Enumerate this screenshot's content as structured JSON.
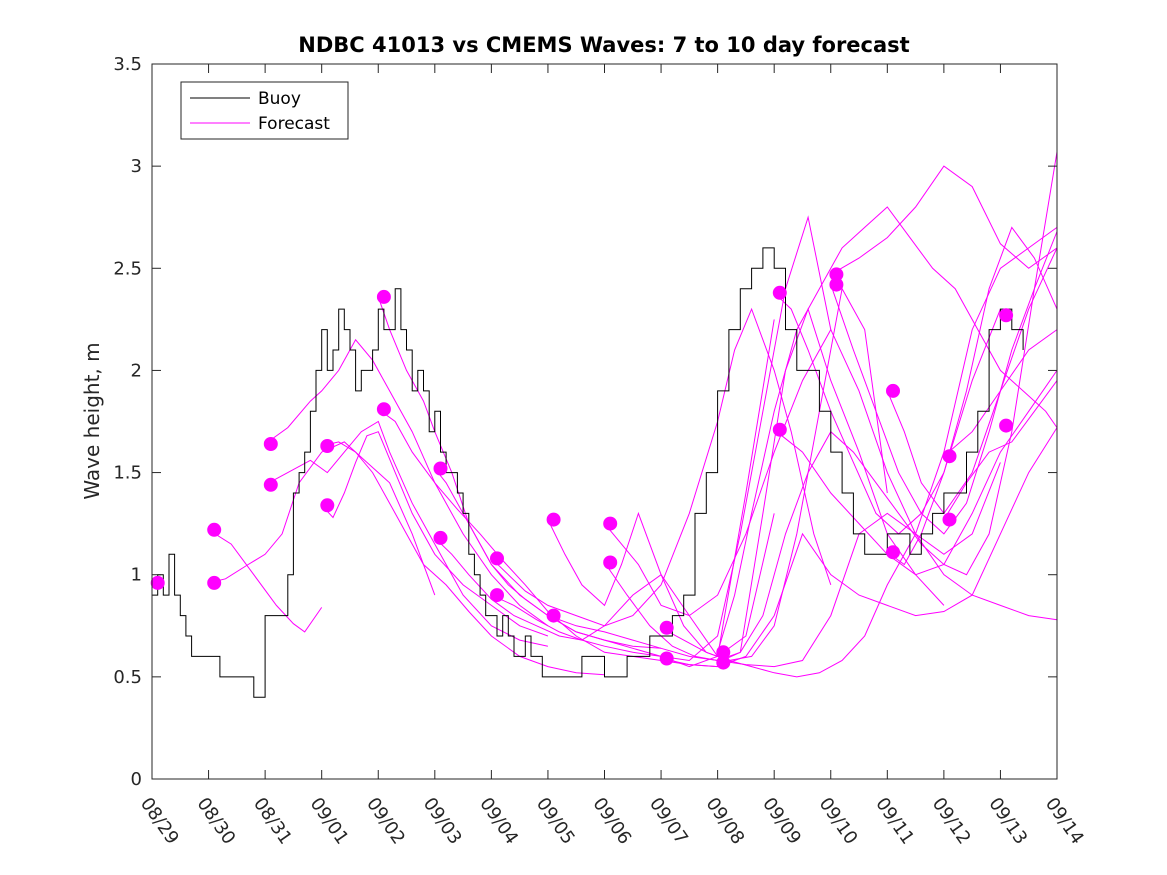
{
  "chart_data": {
    "type": "line",
    "title": "NDBC 41013 vs CMEMS Waves: 7 to 10 day forecast",
    "ylabel": "Wave height, m",
    "xlabel": "",
    "xlim": [
      0,
      16
    ],
    "ylim": [
      0,
      3.5
    ],
    "yticks": [
      0,
      0.5,
      1,
      1.5,
      2,
      2.5,
      3,
      3.5
    ],
    "ytick_labels": [
      "0",
      "0.5",
      "1",
      "1.5",
      "2",
      "2.5",
      "3",
      "3.5"
    ],
    "xtick_labels": [
      "08/29",
      "08/30",
      "08/31",
      "09/01",
      "09/02",
      "09/03",
      "09/04",
      "09/05",
      "09/06",
      "09/07",
      "09/08",
      "09/09",
      "09/10",
      "09/11",
      "09/12",
      "09/13",
      "09/14"
    ],
    "colors": {
      "buoy": "#000000",
      "forecast": "#ff00ff"
    },
    "legend": {
      "location": "top-left",
      "entries": [
        {
          "label": "Buoy",
          "color": "#000000"
        },
        {
          "label": "Forecast",
          "color": "#ff00ff"
        }
      ]
    },
    "buoy": {
      "name": "Buoy",
      "x": [
        0,
        0.1,
        0.2,
        0.3,
        0.4,
        0.5,
        0.6,
        0.7,
        0.8,
        0.9,
        1.0,
        1.2,
        1.4,
        1.6,
        1.8,
        2.0,
        2.2,
        2.4,
        2.5,
        2.6,
        2.7,
        2.8,
        2.9,
        3.0,
        3.1,
        3.2,
        3.3,
        3.4,
        3.5,
        3.6,
        3.7,
        3.8,
        3.9,
        4.0,
        4.1,
        4.2,
        4.3,
        4.4,
        4.5,
        4.6,
        4.7,
        4.8,
        4.9,
        5.0,
        5.1,
        5.2,
        5.3,
        5.4,
        5.5,
        5.6,
        5.7,
        5.8,
        5.9,
        6.0,
        6.1,
        6.2,
        6.3,
        6.4,
        6.5,
        6.6,
        6.7,
        6.8,
        6.9,
        7.0,
        7.2,
        7.4,
        7.6,
        7.8,
        8.0,
        8.2,
        8.4,
        8.6,
        8.8,
        9.0,
        9.2,
        9.4,
        9.6,
        9.8,
        10.0,
        10.2,
        10.4,
        10.6,
        10.8,
        11.0,
        11.2,
        11.4,
        11.6,
        11.8,
        12.0,
        12.2,
        12.4,
        12.6,
        12.8,
        13.0,
        13.2,
        13.4,
        13.6,
        13.8,
        14.0,
        14.2,
        14.4,
        14.6,
        14.8,
        15.0,
        15.2,
        15.4
      ],
      "y": [
        0.9,
        1.0,
        0.9,
        1.1,
        0.9,
        0.8,
        0.7,
        0.6,
        0.6,
        0.6,
        0.6,
        0.5,
        0.5,
        0.5,
        0.4,
        0.8,
        0.8,
        1.0,
        1.4,
        1.5,
        1.6,
        1.8,
        2.0,
        2.2,
        2.0,
        2.1,
        2.3,
        2.2,
        2.1,
        1.9,
        2.0,
        2.0,
        2.1,
        2.3,
        2.2,
        2.2,
        2.4,
        2.2,
        2.1,
        1.9,
        2.0,
        1.9,
        1.7,
        1.8,
        1.6,
        1.5,
        1.5,
        1.4,
        1.3,
        1.1,
        1.0,
        0.9,
        0.8,
        0.8,
        0.7,
        0.8,
        0.7,
        0.6,
        0.6,
        0.7,
        0.6,
        0.6,
        0.5,
        0.5,
        0.5,
        0.5,
        0.6,
        0.6,
        0.5,
        0.5,
        0.6,
        0.6,
        0.7,
        0.7,
        0.8,
        0.9,
        1.3,
        1.5,
        1.9,
        2.2,
        2.4,
        2.5,
        2.6,
        2.5,
        2.2,
        2.0,
        2.0,
        1.8,
        1.6,
        1.4,
        1.2,
        1.1,
        1.1,
        1.2,
        1.2,
        1.1,
        1.2,
        1.3,
        1.4,
        1.4,
        1.6,
        1.8,
        2.2,
        2.3,
        2.2,
        2.1
      ]
    },
    "forecast_series": [
      {
        "name": "Forecast",
        "x": [
          1.0,
          1.4,
          1.8,
          2.2,
          2.5,
          2.7,
          3.0
        ],
        "y": [
          1.22,
          1.15,
          1.0,
          0.85,
          0.76,
          0.72,
          0.84
        ]
      },
      {
        "name": "Forecast",
        "x": [
          1.0,
          1.3,
          1.7,
          2.0,
          2.3,
          2.6,
          3.0,
          3.4,
          3.8,
          4.2,
          4.6,
          5.0
        ],
        "y": [
          0.96,
          0.98,
          1.05,
          1.1,
          1.2,
          1.45,
          1.6,
          1.65,
          1.55,
          1.45,
          1.2,
          0.9
        ]
      },
      {
        "name": "Forecast",
        "x": [
          2.0,
          2.4,
          2.8,
          3.1,
          3.4,
          3.7,
          4.0,
          4.2,
          4.6,
          5.0,
          5.5,
          6.0,
          6.5,
          7.0
        ],
        "y": [
          1.44,
          1.5,
          1.56,
          1.5,
          1.6,
          1.7,
          1.75,
          1.6,
          1.35,
          1.15,
          0.9,
          0.75,
          0.68,
          0.65
        ]
      },
      {
        "name": "Forecast",
        "x": [
          2.0,
          2.4,
          2.8,
          3.0,
          3.3,
          3.6,
          3.9,
          4.2,
          4.6,
          5.0,
          5.5,
          6.0,
          6.5,
          7.0
        ],
        "y": [
          1.64,
          1.72,
          1.85,
          1.9,
          2.0,
          2.15,
          2.05,
          1.9,
          1.7,
          1.45,
          1.2,
          1.0,
          0.85,
          0.75
        ]
      },
      {
        "name": "Forecast",
        "x": [
          3.0,
          3.2,
          3.4,
          3.6,
          3.8,
          4.0,
          4.3,
          4.6,
          5.0,
          5.5,
          6.0,
          6.5,
          7.0
        ],
        "y": [
          1.34,
          1.28,
          1.4,
          1.55,
          1.68,
          1.7,
          1.5,
          1.3,
          1.1,
          0.95,
          0.85,
          0.75,
          0.7
        ]
      },
      {
        "name": "Forecast",
        "x": [
          3.0,
          3.3,
          3.6,
          3.9,
          4.2,
          4.5,
          4.8,
          5.2,
          5.6,
          6.0,
          6.5,
          7.0,
          7.5,
          8.0
        ],
        "y": [
          1.63,
          1.65,
          1.6,
          1.5,
          1.35,
          1.2,
          1.05,
          0.95,
          0.82,
          0.7,
          0.6,
          0.55,
          0.52,
          0.51
        ]
      },
      {
        "name": "Forecast",
        "x": [
          4.0,
          4.2,
          4.5,
          4.8,
          5.0,
          5.3,
          5.6,
          6.0,
          6.5,
          7.0,
          7.5,
          8.0,
          8.5,
          9.0
        ],
        "y": [
          2.36,
          2.2,
          2.0,
          1.85,
          1.7,
          1.5,
          1.25,
          1.05,
          0.9,
          0.8,
          0.72,
          0.68,
          0.65,
          0.64
        ]
      },
      {
        "name": "Forecast",
        "x": [
          4.0,
          4.3,
          4.6,
          5.0,
          5.4,
          5.8,
          6.2,
          6.6,
          7.0,
          7.5,
          8.0,
          8.5,
          9.0,
          9.5,
          10.0
        ],
        "y": [
          1.81,
          1.75,
          1.6,
          1.45,
          1.32,
          1.2,
          1.07,
          0.95,
          0.82,
          0.7,
          0.62,
          0.6,
          0.58,
          0.56,
          0.55
        ]
      },
      {
        "name": "Forecast",
        "x": [
          5.0,
          5.2,
          5.5,
          5.8,
          6.0,
          6.3,
          6.6,
          7.0,
          7.5,
          8.0,
          8.5,
          9.0,
          9.5,
          10.0,
          10.5,
          11.0
        ],
        "y": [
          1.52,
          1.45,
          1.3,
          1.15,
          1.05,
          0.95,
          0.88,
          0.8,
          0.72,
          0.68,
          0.64,
          0.6,
          0.55,
          0.6,
          1.4,
          2.25
        ]
      },
      {
        "name": "Forecast",
        "x": [
          5.0,
          5.3,
          5.6,
          6.0,
          6.4,
          6.8,
          7.2,
          7.6,
          8.0,
          8.5,
          9.0,
          9.5,
          10.0,
          10.5,
          11.0
        ],
        "y": [
          1.18,
          1.1,
          1.0,
          0.88,
          0.8,
          0.75,
          0.7,
          0.68,
          0.75,
          0.9,
          1.0,
          0.8,
          0.6,
          0.7,
          1.3
        ]
      },
      {
        "name": "Forecast",
        "x": [
          6.0,
          6.3,
          6.6,
          7.0,
          7.5,
          8.0,
          8.5,
          9.0,
          9.5,
          10.0,
          10.3,
          10.6,
          11.0,
          11.3,
          11.7,
          12.0
        ],
        "y": [
          1.08,
          1.0,
          0.92,
          0.85,
          0.8,
          0.75,
          0.8,
          0.95,
          1.3,
          1.75,
          2.1,
          2.3,
          2.0,
          1.7,
          1.2,
          0.95
        ]
      },
      {
        "name": "Forecast",
        "x": [
          6.0,
          6.4,
          6.8,
          7.2,
          7.6,
          8.0,
          8.5,
          9.0,
          9.5,
          10.0,
          10.4,
          10.8,
          11.2,
          11.6,
          12.0
        ],
        "y": [
          0.9,
          0.85,
          0.78,
          0.72,
          0.68,
          0.65,
          0.62,
          0.6,
          0.58,
          0.7,
          1.2,
          1.8,
          2.4,
          2.75,
          2.2
        ]
      },
      {
        "name": "Forecast",
        "x": [
          7.0,
          7.3,
          7.6,
          8.0,
          8.3,
          8.6,
          9.0,
          9.4,
          9.8,
          10.2,
          10.6,
          11.0,
          11.4,
          11.8,
          12.2,
          12.6,
          13.0
        ],
        "y": [
          1.27,
          1.1,
          0.95,
          0.85,
          1.05,
          1.3,
          1.0,
          0.75,
          0.62,
          0.58,
          0.6,
          0.75,
          1.2,
          1.8,
          2.4,
          2.2,
          1.4
        ]
      },
      {
        "name": "Forecast",
        "x": [
          7.0,
          7.5,
          8.0,
          8.5,
          9.0,
          9.5,
          10.0,
          10.4,
          10.8,
          11.2,
          11.6,
          12.0,
          12.5,
          13.0,
          13.5,
          14.0
        ],
        "y": [
          0.8,
          0.75,
          0.72,
          0.68,
          0.64,
          0.6,
          0.58,
          0.62,
          1.3,
          2.0,
          2.3,
          1.95,
          1.6,
          1.2,
          1.0,
          0.85
        ]
      },
      {
        "name": "Forecast",
        "x": [
          8.0,
          8.3,
          8.6,
          9.0,
          9.5,
          10.0,
          10.5,
          11.0,
          11.5,
          12.0,
          12.5,
          13.0,
          13.5,
          14.0,
          14.5,
          15.0
        ],
        "y": [
          1.25,
          1.15,
          1.05,
          0.85,
          0.8,
          0.9,
          1.2,
          1.6,
          1.95,
          2.2,
          1.9,
          1.5,
          1.2,
          1.1,
          1.2,
          1.55
        ]
      },
      {
        "name": "Forecast",
        "x": [
          8.0,
          8.4,
          8.8,
          9.2,
          9.6,
          10.0,
          10.5,
          11.0,
          11.5,
          12.0,
          12.5,
          13.0,
          13.5,
          14.0,
          14.5,
          15.0,
          15.5,
          16.0
        ],
        "y": [
          1.06,
          0.9,
          0.75,
          0.65,
          0.6,
          0.58,
          0.56,
          0.55,
          0.58,
          0.8,
          1.2,
          1.3,
          1.2,
          1.0,
          0.9,
          0.85,
          0.8,
          0.78
        ]
      },
      {
        "name": "Forecast",
        "x": [
          9.0,
          9.4,
          9.8,
          10.2,
          10.6,
          11.0,
          11.4,
          11.8,
          12.2,
          12.6,
          13.0,
          13.5,
          14.0,
          14.5,
          15.0,
          15.5,
          16.0
        ],
        "y": [
          0.74,
          0.68,
          0.62,
          0.58,
          0.55,
          0.52,
          0.5,
          0.52,
          0.58,
          0.7,
          0.95,
          1.2,
          1.6,
          2.2,
          2.5,
          2.6,
          2.7
        ]
      },
      {
        "name": "Forecast",
        "x": [
          9.0,
          9.5,
          10.0,
          10.5,
          11.0,
          11.5,
          12.0,
          12.5,
          13.0,
          13.5,
          14.0,
          14.5,
          15.0,
          15.5,
          16.0
        ],
        "y": [
          0.59,
          0.56,
          0.55,
          0.6,
          0.8,
          1.2,
          1.0,
          0.9,
          0.85,
          0.8,
          0.82,
          0.9,
          1.2,
          1.5,
          1.72
        ]
      },
      {
        "name": "Forecast",
        "x": [
          10.0,
          10.3,
          10.6,
          11.0,
          11.4,
          11.8,
          12.2,
          12.6,
          13.0,
          13.4,
          13.8,
          14.2,
          14.6,
          15.0,
          15.4,
          15.8,
          16.0
        ],
        "y": [
          0.62,
          0.9,
          1.3,
          1.8,
          2.2,
          2.4,
          2.6,
          2.7,
          2.8,
          2.65,
          2.5,
          2.4,
          2.2,
          2.0,
          1.9,
          1.8,
          1.72
        ]
      },
      {
        "name": "Forecast",
        "x": [
          10.0,
          10.4,
          10.8,
          11.2,
          11.6,
          12.0,
          12.4,
          12.8,
          13.2,
          13.6,
          14.0,
          14.4,
          14.8,
          15.2,
          15.6,
          16.0
        ],
        "y": [
          0.57,
          0.62,
          0.8,
          1.2,
          1.5,
          1.7,
          1.6,
          1.45,
          1.3,
          1.15,
          1.05,
          1.0,
          1.2,
          1.7,
          2.4,
          3.07
        ]
      },
      {
        "name": "Forecast",
        "x": [
          11.0,
          11.3,
          11.6,
          12.0,
          12.4,
          12.8,
          13.2,
          13.6,
          14.0,
          14.4,
          14.8,
          15.2,
          15.6,
          16.0
        ],
        "y": [
          2.38,
          2.3,
          2.1,
          1.8,
          1.55,
          1.3,
          1.2,
          1.3,
          1.5,
          1.9,
          2.4,
          2.7,
          2.55,
          2.3
        ]
      },
      {
        "name": "Forecast",
        "x": [
          11.0,
          11.5,
          12.0,
          12.5,
          13.0,
          13.5,
          14.0,
          14.5,
          15.0,
          15.5,
          16.0
        ],
        "y": [
          1.71,
          1.6,
          1.4,
          1.25,
          1.1,
          1.0,
          1.05,
          1.3,
          1.6,
          1.8,
          2.0
        ]
      },
      {
        "name": "Forecast",
        "x": [
          12.0,
          12.5,
          13.0,
          13.5,
          14.0,
          14.5,
          15.0,
          15.5,
          16.0
        ],
        "y": [
          2.47,
          2.55,
          2.65,
          2.8,
          3.0,
          2.9,
          2.62,
          2.5,
          2.6
        ]
      },
      {
        "name": "Forecast",
        "x": [
          12.0,
          12.4,
          12.8,
          13.2,
          13.6,
          14.0,
          14.4,
          14.8,
          15.2,
          15.6,
          16.0
        ],
        "y": [
          2.42,
          2.1,
          1.8,
          1.5,
          1.3,
          1.2,
          1.35,
          1.7,
          2.1,
          2.4,
          2.68
        ]
      },
      {
        "name": "Forecast",
        "x": [
          13.0,
          13.3,
          13.6,
          14.0,
          14.5,
          15.0,
          15.5,
          16.0
        ],
        "y": [
          1.9,
          1.7,
          1.45,
          1.3,
          1.5,
          1.9,
          2.3,
          2.6
        ]
      },
      {
        "name": "Forecast",
        "x": [
          13.0,
          13.3,
          13.6,
          14.0,
          14.5,
          15.0
        ],
        "y": [
          1.11,
          1.05,
          1.2,
          1.5,
          1.95,
          2.3
        ]
      },
      {
        "name": "Forecast",
        "x": [
          14.0,
          14.5,
          15.0,
          15.5,
          16.0
        ],
        "y": [
          1.58,
          1.7,
          1.9,
          2.1,
          2.2
        ]
      },
      {
        "name": "Forecast",
        "x": [
          14.0,
          14.4,
          14.8,
          15.2,
          15.6,
          16.0
        ],
        "y": [
          1.27,
          1.45,
          1.6,
          1.65,
          1.8,
          1.95
        ]
      }
    ],
    "forecast_start_points": {
      "name": "Forecast",
      "x": [
        0.1,
        1.1,
        1.1,
        2.1,
        2.1,
        3.1,
        3.1,
        4.1,
        4.1,
        5.1,
        5.1,
        6.1,
        6.1,
        7.1,
        7.1,
        8.1,
        8.1,
        9.1,
        9.1,
        10.1,
        10.1,
        11.1,
        11.1,
        12.1,
        12.1,
        13.1,
        13.1,
        14.1,
        14.1,
        15.1,
        15.1
      ],
      "y": [
        0.96,
        1.22,
        0.96,
        1.64,
        1.44,
        1.63,
        1.34,
        2.36,
        1.81,
        1.52,
        1.18,
        1.08,
        0.9,
        1.27,
        0.8,
        1.25,
        1.06,
        0.74,
        0.59,
        0.62,
        0.57,
        2.38,
        1.71,
        2.47,
        2.42,
        1.9,
        1.11,
        1.58,
        1.27,
        2.27,
        1.73
      ]
    }
  }
}
